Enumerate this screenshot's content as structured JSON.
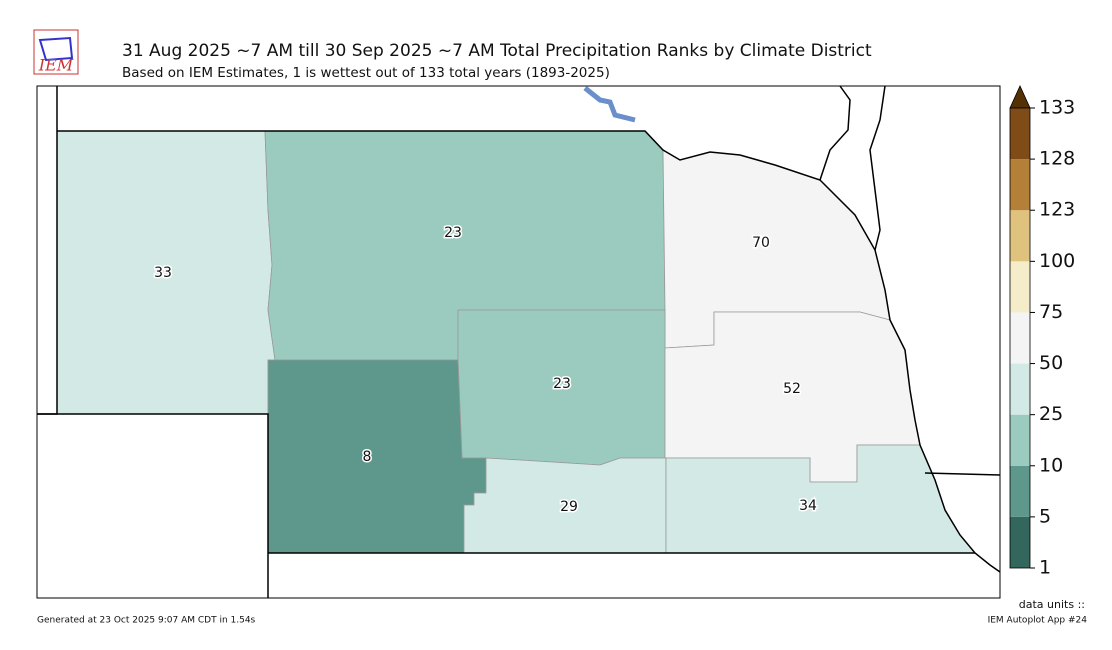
{
  "header": {
    "logo": "IEM",
    "title": "31 Aug 2025 ~7 AM till 30 Sep 2025 ~7 AM Total Precipitation Ranks by Climate District",
    "subtitle": "Based on IEM Estimates, 1 is wettest out of 133 total years (1893-2025)"
  },
  "districts": [
    33,
    23,
    70,
    23,
    52,
    8,
    29,
    34
  ],
  "colorbar": {
    "ticks": [
      1,
      5,
      10,
      25,
      50,
      75,
      100,
      123,
      128,
      133
    ],
    "colors": [
      "#33665d",
      "#5e978c",
      "#9bcbbf",
      "#d2e9e5",
      "#f4f4f4",
      "#f5ecc9",
      "#dfc27d",
      "#b47f37",
      "#7f4c18"
    ],
    "extend_color": "#543005"
  },
  "footer": {
    "generated": "Generated at 23 Oct 2025 9:07 AM CDT in 1.54s",
    "units": "data units ::",
    "app": "IEM Autoplot App #24"
  }
}
